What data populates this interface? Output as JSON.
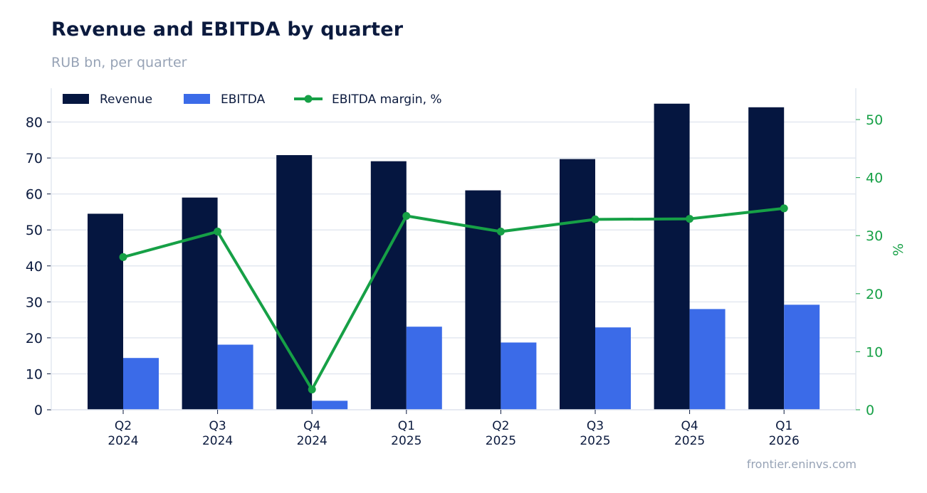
{
  "header": {
    "title": "Revenue and EBITDA by quarter",
    "subtitle": "RUB bn, per quarter"
  },
  "footer": {
    "source": "frontier.eninvs.com"
  },
  "colors": {
    "revenue": "#051640",
    "ebitda": "#3b6be8",
    "margin": "#16a046",
    "grid": "#e3e8f0",
    "axis_text": "#0b1a3e",
    "right_axis_text": "#16a046"
  },
  "chart_data": {
    "type": "bar",
    "categories": [
      [
        "Q2",
        "2024"
      ],
      [
        "Q3",
        "2024"
      ],
      [
        "Q4",
        "2024"
      ],
      [
        "Q1",
        "2025"
      ],
      [
        "Q2",
        "2025"
      ],
      [
        "Q3",
        "2025"
      ],
      [
        "Q4",
        "2025"
      ],
      [
        "Q1",
        "2026"
      ]
    ],
    "series": [
      {
        "name": "Revenue",
        "kind": "bar",
        "axis": "left",
        "values": [
          54.5,
          59.0,
          70.8,
          69.1,
          61.0,
          69.7,
          85.1,
          84.1
        ]
      },
      {
        "name": "EBITDA",
        "kind": "bar",
        "axis": "left",
        "values": [
          14.4,
          18.1,
          2.5,
          23.1,
          18.7,
          22.9,
          28.0,
          29.2
        ]
      },
      {
        "name": "EBITDA margin, %",
        "kind": "line",
        "axis": "right",
        "values": [
          26.3,
          30.7,
          3.5,
          33.4,
          30.7,
          32.8,
          32.9,
          34.7
        ]
      }
    ],
    "left_axis": {
      "ylim": [
        0,
        89.4
      ],
      "ticks": [
        0,
        10,
        20,
        30,
        40,
        50,
        60,
        70,
        80
      ]
    },
    "right_axis": {
      "ylabel": "%",
      "ylim": [
        0,
        55.4
      ],
      "ticks": [
        0,
        10,
        20,
        30,
        40,
        50
      ]
    },
    "grid": true,
    "legend_position": "top-left"
  }
}
